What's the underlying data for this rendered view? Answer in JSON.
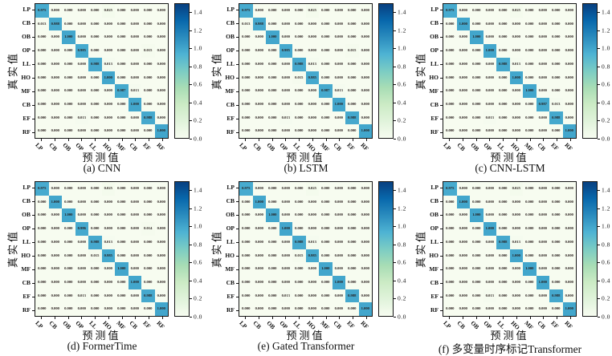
{
  "chart_data": {
    "type": "heatmap",
    "description": "2x3 grid of normalized confusion matrices comparing six models",
    "colormap": "GnBu",
    "vmin": 0.0,
    "vmax": 1.5,
    "grid": false,
    "xlabel": "预测值",
    "ylabel": "真实值",
    "x_categories": [
      "LP",
      "CB",
      "OB",
      "OP",
      "LL",
      "HO",
      "MF",
      "CB",
      "EF",
      "RF"
    ],
    "y_categories": [
      "LP",
      "CB",
      "OB",
      "OP",
      "LL",
      "HO",
      "MF",
      "CB",
      "EF",
      "RF"
    ],
    "colorbar_tick_labels": [
      "1.4",
      "1.2",
      "1.0",
      "0.8",
      "0.6",
      "0.4",
      "0.2",
      "0.0"
    ],
    "colorbar_tick_values": [
      1.4,
      1.2,
      1.0,
      0.8,
      0.6,
      0.4,
      0.2,
      0.0
    ],
    "value_format_decimals": 3,
    "panels": [
      {
        "caption": "(a) CNN",
        "matrix": [
          [
            0.975,
            0,
            0,
            0,
            0,
            0.025,
            0,
            0,
            0,
            0
          ],
          [
            0.013,
            0.988,
            0,
            0,
            0,
            0,
            0,
            0,
            0,
            0
          ],
          [
            0,
            0,
            1,
            0,
            0,
            0,
            0,
            0,
            0,
            0
          ],
          [
            0,
            0,
            0,
            0.985,
            0,
            0,
            0,
            0,
            0.015,
            0
          ],
          [
            0,
            0,
            0,
            0,
            0.988,
            0.013,
            0,
            0,
            0,
            0
          ],
          [
            0,
            0,
            0,
            0,
            0,
            1,
            0,
            0,
            0,
            0
          ],
          [
            0,
            0,
            0,
            0,
            0,
            0,
            0.987,
            0.013,
            0,
            0
          ],
          [
            0,
            0,
            0,
            0,
            0,
            0,
            0,
            1,
            0,
            0
          ],
          [
            0,
            0,
            0,
            0.013,
            0,
            0,
            0,
            0,
            0.988,
            0
          ],
          [
            0,
            0,
            0,
            0,
            0,
            0,
            0,
            0,
            0,
            1
          ]
        ]
      },
      {
        "caption": "(b) LSTM",
        "matrix": [
          [
            0.975,
            0,
            0,
            0,
            0,
            0.025,
            0,
            0,
            0,
            0
          ],
          [
            0.013,
            0.988,
            0,
            0,
            0,
            0,
            0,
            0,
            0,
            0
          ],
          [
            0,
            0,
            1,
            0,
            0,
            0,
            0,
            0,
            0,
            0
          ],
          [
            0,
            0,
            0,
            0.985,
            0,
            0,
            0,
            0,
            0.015,
            0
          ],
          [
            0,
            0,
            0,
            0,
            0.988,
            0.013,
            0,
            0,
            0,
            0
          ],
          [
            0,
            0,
            0,
            0,
            0.015,
            0.985,
            0,
            0,
            0,
            0
          ],
          [
            0,
            0,
            0,
            0,
            0,
            0,
            0.987,
            0.013,
            0,
            0
          ],
          [
            0,
            0,
            0,
            0,
            0,
            0,
            0,
            1,
            0,
            0
          ],
          [
            0,
            0,
            0,
            0.013,
            0,
            0,
            0,
            0,
            0.988,
            0
          ],
          [
            0,
            0,
            0,
            0,
            0,
            0,
            0,
            0,
            0,
            1
          ]
        ]
      },
      {
        "caption": "(c) CNN-LSTM",
        "matrix": [
          [
            0.975,
            0,
            0,
            0,
            0,
            0.025,
            0,
            0,
            0,
            0
          ],
          [
            0,
            1,
            0,
            0,
            0,
            0,
            0,
            0,
            0,
            0
          ],
          [
            0,
            0,
            1,
            0,
            0,
            0,
            0,
            0,
            0,
            0
          ],
          [
            0,
            0,
            0,
            1,
            0,
            0,
            0,
            0,
            0,
            0
          ],
          [
            0,
            0,
            0,
            0,
            0.988,
            0.013,
            0,
            0,
            0,
            0
          ],
          [
            0,
            0,
            0,
            0,
            0,
            1,
            0,
            0,
            0,
            0
          ],
          [
            0,
            0,
            0,
            0,
            0,
            0,
            1,
            0,
            0,
            0
          ],
          [
            0,
            0,
            0,
            0,
            0,
            0,
            0,
            0.987,
            0.013,
            0
          ],
          [
            0,
            0,
            0,
            0.013,
            0,
            0,
            0,
            0,
            0.988,
            0
          ],
          [
            0,
            0,
            0,
            0,
            0,
            0,
            0,
            0,
            0,
            1
          ]
        ]
      },
      {
        "caption": "(d) FormerTime",
        "matrix": [
          [
            0.975,
            0,
            0,
            0,
            0,
            0.025,
            0,
            0,
            0,
            0
          ],
          [
            0,
            1,
            0,
            0,
            0,
            0,
            0,
            0,
            0,
            0
          ],
          [
            0,
            0,
            1,
            0,
            0,
            0,
            0,
            0,
            0,
            0
          ],
          [
            0,
            0,
            0,
            0.986,
            0,
            0,
            0,
            0,
            0.014,
            0
          ],
          [
            0,
            0,
            0,
            0,
            0.988,
            0.013,
            0,
            0,
            0,
            0
          ],
          [
            0,
            0,
            0,
            0,
            0.015,
            0.985,
            0,
            0,
            0,
            0
          ],
          [
            0,
            0,
            0,
            0,
            0,
            0,
            1,
            0,
            0,
            0
          ],
          [
            0,
            0,
            0,
            0,
            0,
            0,
            0,
            1,
            0,
            0
          ],
          [
            0,
            0,
            0,
            0.013,
            0,
            0,
            0,
            0,
            0.988,
            0
          ],
          [
            0,
            0,
            0,
            0,
            0,
            0,
            0,
            0,
            0,
            1
          ]
        ]
      },
      {
        "caption": "(e) Gated Transformer",
        "matrix": [
          [
            0.975,
            0,
            0,
            0,
            0,
            0.025,
            0,
            0,
            0,
            0
          ],
          [
            0,
            1,
            0,
            0,
            0,
            0,
            0,
            0,
            0,
            0
          ],
          [
            0,
            0,
            1,
            0,
            0,
            0,
            0,
            0,
            0,
            0
          ],
          [
            0,
            0,
            0,
            1,
            0,
            0,
            0,
            0,
            0,
            0
          ],
          [
            0,
            0,
            0,
            0,
            0.988,
            0.013,
            0,
            0,
            0,
            0
          ],
          [
            0,
            0,
            0,
            0,
            0.015,
            0.985,
            0,
            0,
            0,
            0
          ],
          [
            0,
            0,
            0,
            0,
            0,
            0,
            1,
            0,
            0,
            0
          ],
          [
            0,
            0,
            0,
            0,
            0,
            0,
            0,
            1,
            0,
            0
          ],
          [
            0,
            0,
            0,
            0.013,
            0,
            0,
            0,
            0,
            0.988,
            0
          ],
          [
            0,
            0,
            0,
            0,
            0,
            0,
            0,
            0,
            0,
            1
          ]
        ]
      },
      {
        "caption": "(f) 多变量时序标记Transformer",
        "matrix": [
          [
            0.975,
            0,
            0,
            0,
            0,
            0.025,
            0,
            0,
            0,
            0
          ],
          [
            0,
            1,
            0,
            0,
            0,
            0,
            0,
            0,
            0,
            0
          ],
          [
            0,
            0,
            1,
            0,
            0,
            0,
            0,
            0,
            0,
            0
          ],
          [
            0,
            0,
            0,
            1,
            0,
            0,
            0,
            0,
            0,
            0
          ],
          [
            0,
            0,
            0,
            0,
            0.988,
            0.013,
            0,
            0,
            0,
            0
          ],
          [
            0,
            0,
            0,
            0,
            0,
            1,
            0,
            0,
            0,
            0
          ],
          [
            0,
            0,
            0,
            0,
            0,
            0,
            1,
            0,
            0,
            0
          ],
          [
            0,
            0,
            0,
            0,
            0,
            0,
            0,
            1,
            0,
            0
          ],
          [
            0,
            0,
            0,
            0.013,
            0,
            0,
            0,
            0,
            0.988,
            0
          ],
          [
            0,
            0,
            0,
            0,
            0,
            0,
            0,
            0,
            0,
            1
          ]
        ]
      }
    ]
  }
}
